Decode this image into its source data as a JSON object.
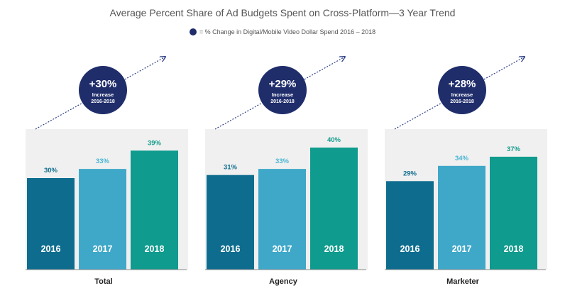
{
  "chart_data": {
    "type": "bar",
    "title": "Average Percent Share of Ad Budgets Spent on Cross-Platform—3 Year Trend",
    "legend": "= % Change in Digital/Mobile Video Dollar Spend  2016 – 2018",
    "categories": [
      "2016",
      "2017",
      "2018"
    ],
    "ylim": [
      0,
      50
    ],
    "colors": {
      "2016": "#0e6d8f",
      "2017": "#3fa8c9",
      "2018": "#0f9b8e",
      "label_2016": "#0e6d8f",
      "label_2017": "#49b5d3",
      "label_2018": "#149c8c",
      "circle": "#1f2d6b",
      "arrow": "#2d3f86",
      "panel": "#f0f0f0"
    },
    "groups": [
      {
        "name": "Total",
        "values": [
          30,
          33,
          39
        ],
        "labels": [
          "30%",
          "33%",
          "39%"
        ],
        "change": "+30%",
        "change_text": "Increase",
        "change_period": "2016-2018"
      },
      {
        "name": "Agency",
        "values": [
          31,
          33,
          40
        ],
        "labels": [
          "31%",
          "33%",
          "40%"
        ],
        "change": "+29%",
        "change_text": "Increase",
        "change_period": "2016-2018"
      },
      {
        "name": "Marketer",
        "values": [
          29,
          34,
          37
        ],
        "labels": [
          "29%",
          "34%",
          "37%"
        ],
        "change": "+28%",
        "change_text": "Increase",
        "change_period": "2016-2018"
      }
    ]
  }
}
